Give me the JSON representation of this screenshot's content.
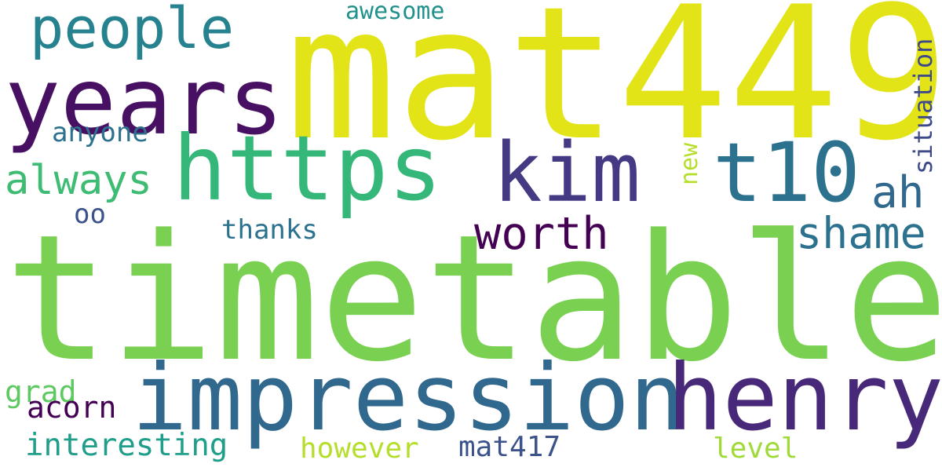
{
  "words": [
    {
      "text": "timetable",
      "color": "#7ad151"
    },
    {
      "text": "mat449",
      "color": "#e2e418"
    },
    {
      "text": "impression",
      "color": "#31688e"
    },
    {
      "text": "henry",
      "color": "#482878"
    },
    {
      "text": "years",
      "color": "#471063"
    },
    {
      "text": "https",
      "color": "#35b779"
    },
    {
      "text": "kim",
      "color": "#443983"
    },
    {
      "text": "t10",
      "color": "#2c728e"
    },
    {
      "text": "people",
      "color": "#26828e"
    },
    {
      "text": "worth",
      "color": "#440154"
    },
    {
      "text": "shame",
      "color": "#2c728e"
    },
    {
      "text": "always",
      "color": "#3fbc73"
    },
    {
      "text": "ah",
      "color": "#31688e"
    },
    {
      "text": "awesome",
      "color": "#21918c"
    },
    {
      "text": "anyone",
      "color": "#2c728e"
    },
    {
      "text": "thanks",
      "color": "#2c728e"
    },
    {
      "text": "oo",
      "color": "#3b528b"
    },
    {
      "text": "situation",
      "color": "#3e4989"
    },
    {
      "text": "new",
      "color": "#b5de2b"
    },
    {
      "text": "grad",
      "color": "#5ec962"
    },
    {
      "text": "acorn",
      "color": "#440154"
    },
    {
      "text": "interesting",
      "color": "#1f9e89"
    },
    {
      "text": "however",
      "color": "#b5de2b"
    },
    {
      "text": "mat417",
      "color": "#3b528b"
    },
    {
      "text": "level",
      "color": "#a0da39"
    }
  ]
}
